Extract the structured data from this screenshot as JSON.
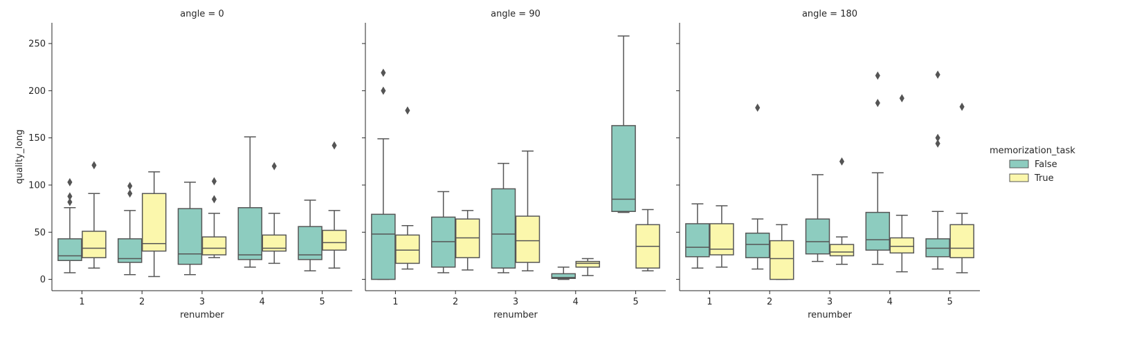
{
  "chart_data": {
    "type": "boxplot",
    "xlabel": "renumber",
    "ylabel": "quality_long",
    "ylim": [
      -12,
      272
    ],
    "yticks": [
      0,
      50,
      100,
      150,
      200,
      250
    ],
    "categories": [
      "1",
      "2",
      "3",
      "4",
      "5"
    ],
    "legend": {
      "title": "memorization_task",
      "position": "right",
      "entries": [
        {
          "label": "False",
          "color": "#8dccbf"
        },
        {
          "label": "True",
          "color": "#fbf7ac"
        }
      ]
    },
    "panels": [
      {
        "title": "angle = 0",
        "groups": [
          {
            "category": "1",
            "hue": "False",
            "whislo": 7,
            "q1": 20,
            "med": 25,
            "q3": 43,
            "whishi": 76,
            "fliers": [
              82,
              88,
              103
            ]
          },
          {
            "category": "1",
            "hue": "True",
            "whislo": 12,
            "q1": 23,
            "med": 33,
            "q3": 51,
            "whishi": 91,
            "fliers": [
              121
            ]
          },
          {
            "category": "2",
            "hue": "False",
            "whislo": 5,
            "q1": 18,
            "med": 22,
            "q3": 43,
            "whishi": 73,
            "fliers": [
              91,
              99
            ]
          },
          {
            "category": "2",
            "hue": "True",
            "whislo": 3,
            "q1": 30,
            "med": 38,
            "q3": 91,
            "whishi": 114,
            "fliers": []
          },
          {
            "category": "3",
            "hue": "False",
            "whislo": 5,
            "q1": 16,
            "med": 27,
            "q3": 75,
            "whishi": 103,
            "fliers": []
          },
          {
            "category": "3",
            "hue": "True",
            "whislo": 23,
            "q1": 26,
            "med": 33,
            "q3": 45,
            "whishi": 70,
            "fliers": [
              85,
              104
            ]
          },
          {
            "category": "4",
            "hue": "False",
            "whislo": 13,
            "q1": 21,
            "med": 26,
            "q3": 76,
            "whishi": 151,
            "fliers": []
          },
          {
            "category": "4",
            "hue": "True",
            "whislo": 17,
            "q1": 30,
            "med": 33,
            "q3": 47,
            "whishi": 70,
            "fliers": [
              120
            ]
          },
          {
            "category": "5",
            "hue": "False",
            "whislo": 9,
            "q1": 21,
            "med": 26,
            "q3": 56,
            "whishi": 84,
            "fliers": []
          },
          {
            "category": "5",
            "hue": "True",
            "whislo": 12,
            "q1": 31,
            "med": 39,
            "q3": 52,
            "whishi": 73,
            "fliers": [
              142
            ]
          }
        ]
      },
      {
        "title": "angle = 90",
        "groups": [
          {
            "category": "1",
            "hue": "False",
            "whislo": 0,
            "q1": 0,
            "med": 48,
            "q3": 69,
            "whishi": 149,
            "fliers": [
              200,
              219
            ]
          },
          {
            "category": "1",
            "hue": "True",
            "whislo": 11,
            "q1": 17,
            "med": 31,
            "q3": 47,
            "whishi": 57,
            "fliers": [
              179
            ]
          },
          {
            "category": "2",
            "hue": "False",
            "whislo": 7,
            "q1": 13,
            "med": 40,
            "q3": 66,
            "whishi": 93,
            "fliers": []
          },
          {
            "category": "2",
            "hue": "True",
            "whislo": 10,
            "q1": 23,
            "med": 44,
            "q3": 64,
            "whishi": 73,
            "fliers": []
          },
          {
            "category": "3",
            "hue": "False",
            "whislo": 7,
            "q1": 12,
            "med": 48,
            "q3": 96,
            "whishi": 123,
            "fliers": []
          },
          {
            "category": "3",
            "hue": "True",
            "whislo": 9,
            "q1": 18,
            "med": 41,
            "q3": 67,
            "whishi": 136,
            "fliers": []
          },
          {
            "category": "4",
            "hue": "False",
            "whislo": 0,
            "q1": 1,
            "med": 2,
            "q3": 6,
            "whishi": 13,
            "fliers": []
          },
          {
            "category": "4",
            "hue": "True",
            "whislo": 4,
            "q1": 13,
            "med": 17,
            "q3": 19,
            "whishi": 22,
            "fliers": []
          },
          {
            "category": "5",
            "hue": "False",
            "whislo": 71,
            "q1": 72,
            "med": 85,
            "q3": 163,
            "whishi": 258,
            "fliers": []
          },
          {
            "category": "5",
            "hue": "True",
            "whislo": 9,
            "q1": 12,
            "med": 35,
            "q3": 58,
            "whishi": 74,
            "fliers": []
          }
        ]
      },
      {
        "title": "angle = 180",
        "groups": [
          {
            "category": "1",
            "hue": "False",
            "whislo": 12,
            "q1": 24,
            "med": 34,
            "q3": 59,
            "whishi": 80,
            "fliers": []
          },
          {
            "category": "1",
            "hue": "True",
            "whislo": 13,
            "q1": 26,
            "med": 32,
            "q3": 59,
            "whishi": 78,
            "fliers": []
          },
          {
            "category": "2",
            "hue": "False",
            "whislo": 11,
            "q1": 23,
            "med": 37,
            "q3": 49,
            "whishi": 64,
            "fliers": [
              182
            ]
          },
          {
            "category": "2",
            "hue": "True",
            "whislo": 0,
            "q1": 0,
            "med": 22,
            "q3": 41,
            "whishi": 58,
            "fliers": []
          },
          {
            "category": "3",
            "hue": "False",
            "whislo": 19,
            "q1": 27,
            "med": 40,
            "q3": 64,
            "whishi": 111,
            "fliers": []
          },
          {
            "category": "3",
            "hue": "True",
            "whislo": 16,
            "q1": 25,
            "med": 29,
            "q3": 37,
            "whishi": 45,
            "fliers": [
              125
            ]
          },
          {
            "category": "4",
            "hue": "False",
            "whislo": 16,
            "q1": 31,
            "med": 42,
            "q3": 71,
            "whishi": 113,
            "fliers": [
              187,
              216
            ]
          },
          {
            "category": "4",
            "hue": "True",
            "whislo": 8,
            "q1": 28,
            "med": 35,
            "q3": 44,
            "whishi": 68,
            "fliers": [
              192
            ]
          },
          {
            "category": "5",
            "hue": "False",
            "whislo": 11,
            "q1": 24,
            "med": 33,
            "q3": 43,
            "whishi": 72,
            "fliers": [
              144,
              150,
              217
            ]
          },
          {
            "category": "5",
            "hue": "True",
            "whislo": 7,
            "q1": 23,
            "med": 33,
            "q3": 58,
            "whishi": 70,
            "fliers": [
              183
            ]
          }
        ]
      }
    ]
  }
}
